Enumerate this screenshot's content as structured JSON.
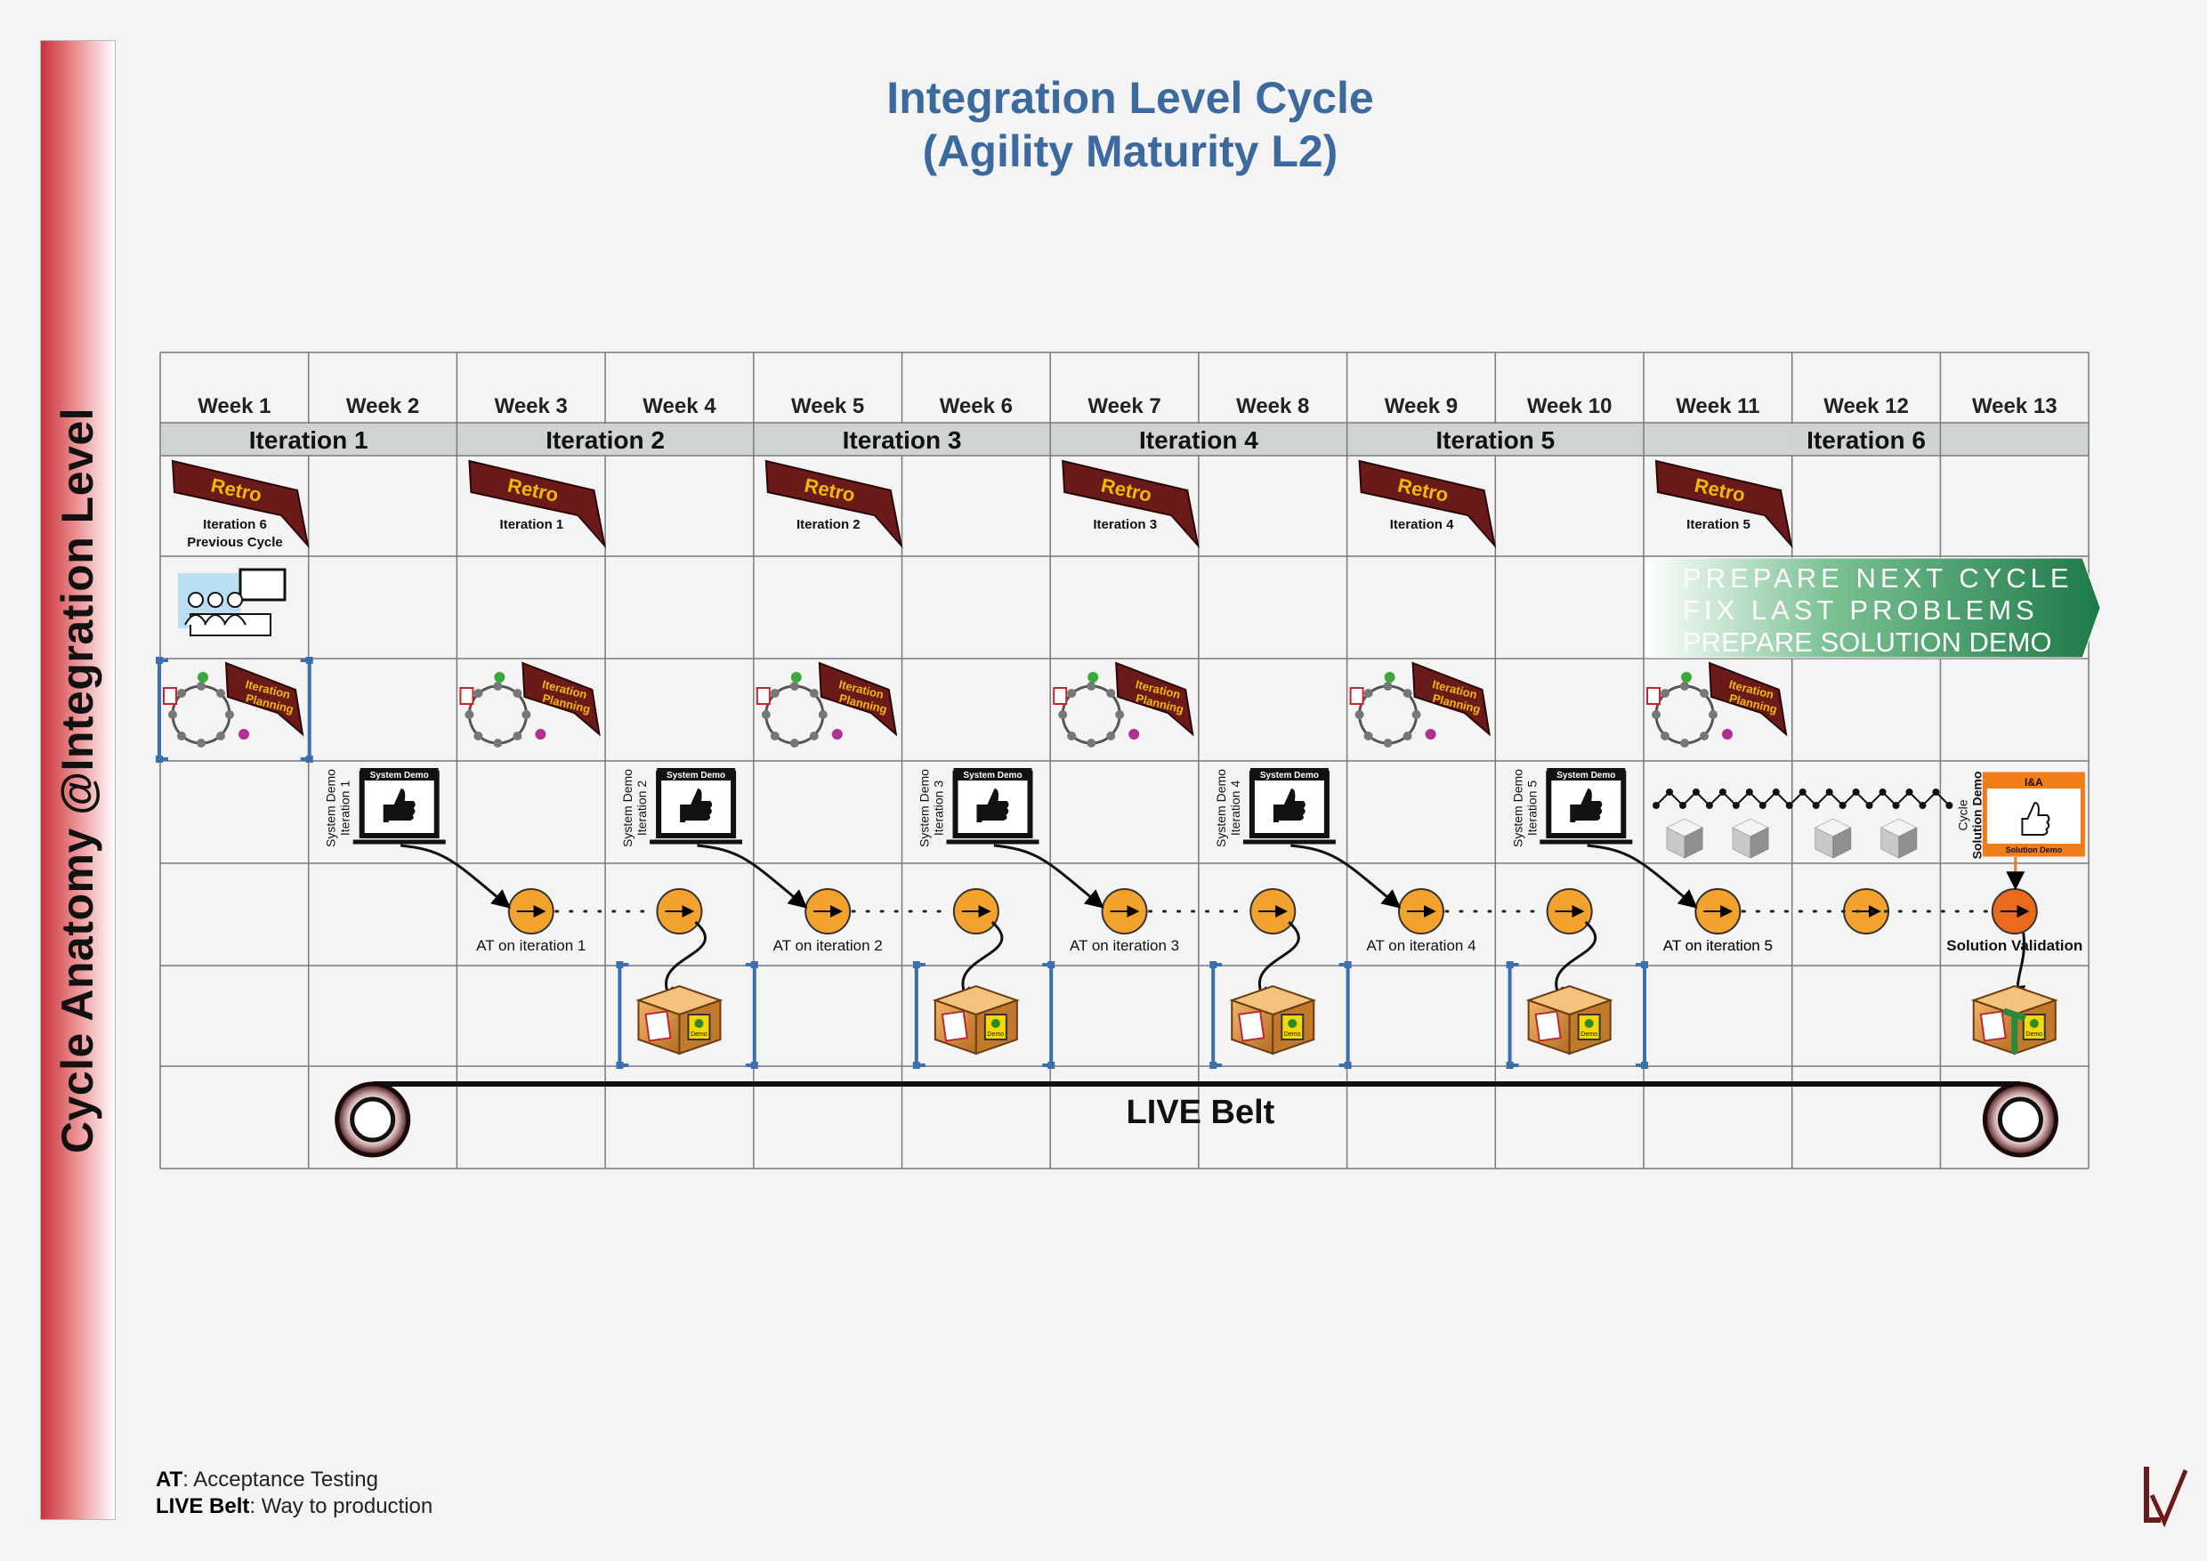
{
  "title_line1": "Integration Level Cycle",
  "title_line2": "(Agility Maturity L2)",
  "side_title": "Cycle Anatomy @Integration Level",
  "weeks": [
    "Week 1",
    "Week 2",
    "Week 3",
    "Week 4",
    "Week 5",
    "Week 6",
    "Week 7",
    "Week 8",
    "Week 9",
    "Week 10",
    "Week 11",
    "Week 12",
    "Week 13"
  ],
  "iterations": [
    "Iteration 1",
    "Iteration 2",
    "Iteration 3",
    "Iteration 4",
    "Iteration 5",
    "Iteration 6"
  ],
  "retro": {
    "label": "Retro",
    "captions": [
      [
        "Iteration 6",
        "Previous Cycle"
      ],
      [
        "Iteration 1"
      ],
      [
        "Iteration 2"
      ],
      [
        "Iteration 3"
      ],
      [
        "Iteration 4"
      ],
      [
        "Iteration 5"
      ]
    ]
  },
  "prepare_banner": [
    "PREPARE NEXT CYCLE",
    "FIX LAST PROBLEMS",
    "PREPARE SOLUTION DEMO"
  ],
  "planning_label": [
    "Iteration",
    "Planning"
  ],
  "system_demo": {
    "screen_title": "System Demo",
    "side_label": "System Demo",
    "iterations": [
      "Iteration 1",
      "Iteration 2",
      "Iteration 3",
      "Iteration 4",
      "Iteration 5"
    ]
  },
  "solution_demo": {
    "header": "I&A",
    "footer": "Solution Demo",
    "side_label_line1": "Cycle",
    "side_label_line2": "Solution Demo"
  },
  "acceptance_testing": [
    "AT on iteration 1",
    "AT on iteration 2",
    "AT on iteration 3",
    "AT on iteration 4",
    "AT on iteration 5"
  ],
  "solution_validation": "Solution Validation",
  "box_labels": [
    "Demo"
  ],
  "live_belt": "LIVE Belt",
  "legend": {
    "at_term": "AT",
    "at_desc": ": Acceptance Testing",
    "belt_term": "LIVE Belt",
    "belt_desc": ": Way to production"
  },
  "colors": {
    "title": "#3c6a9f",
    "retro_fill": "#6b1a1a",
    "retro_text": "#f5b800",
    "at_circle": "#f4a22e",
    "validation_circle": "#ea6a1e",
    "banner_dark": "#1d7a46",
    "iteration_bar": "#cfd3d4",
    "bracket": "#3a6fb0",
    "box": "#d8903e"
  }
}
